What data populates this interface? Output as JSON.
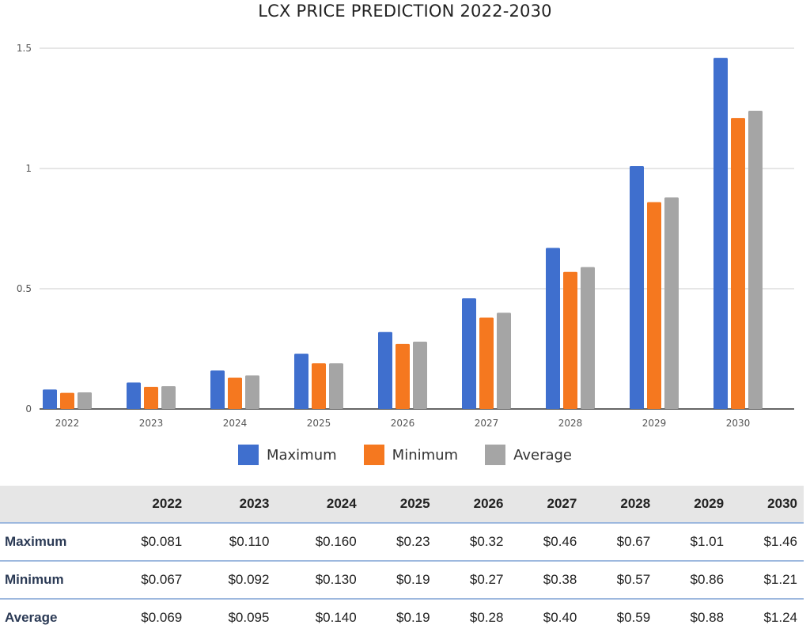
{
  "chart_data": {
    "type": "bar",
    "title": "LCX PRICE PREDICTION 2022-2030",
    "categories": [
      "2022",
      "2023",
      "2024",
      "2025",
      "2026",
      "2027",
      "2028",
      "2029",
      "2030"
    ],
    "series": [
      {
        "name": "Maximum",
        "color": "#3f6fce",
        "values": [
          0.081,
          0.11,
          0.16,
          0.23,
          0.32,
          0.46,
          0.67,
          1.01,
          1.46
        ]
      },
      {
        "name": "Minimum",
        "color": "#f5781f",
        "values": [
          0.067,
          0.092,
          0.13,
          0.19,
          0.27,
          0.38,
          0.57,
          0.86,
          1.21
        ]
      },
      {
        "name": "Average",
        "color": "#a5a5a5",
        "values": [
          0.069,
          0.095,
          0.14,
          0.19,
          0.28,
          0.4,
          0.59,
          0.88,
          1.24
        ]
      }
    ],
    "ylim": [
      0,
      1.5
    ],
    "yticks": [
      "0",
      "0.5",
      "1",
      "1.5"
    ],
    "grid": true,
    "legend_position": "bottom"
  },
  "table": {
    "years": [
      "2022",
      "2023",
      "2024",
      "2025",
      "2026",
      "2027",
      "2028",
      "2029",
      "2030"
    ],
    "rows": [
      {
        "label": "Maximum",
        "values": [
          "$0.081",
          "$0.110",
          "$0.160",
          "$0.23",
          "$0.32",
          "$0.46",
          "$0.67",
          "$1.01",
          "$1.46"
        ]
      },
      {
        "label": "Minimum",
        "values": [
          "$0.067",
          "$0.092",
          "$0.130",
          "$0.19",
          "$0.27",
          "$0.38",
          "$0.57",
          "$0.86",
          "$1.21"
        ]
      },
      {
        "label": "Average",
        "values": [
          "$0.069",
          "$0.095",
          "$0.140",
          "$0.19",
          "$0.28",
          "$0.40",
          "$0.59",
          "$0.88",
          "$1.24"
        ]
      }
    ]
  }
}
